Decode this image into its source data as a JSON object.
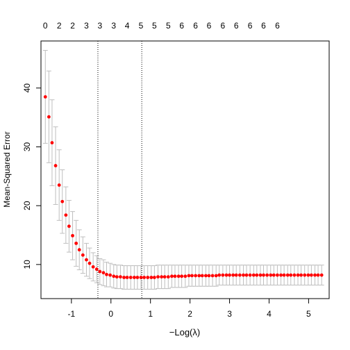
{
  "chart_data": {
    "type": "scatter",
    "title": "",
    "xlabel": "−Log(λ)",
    "ylabel": "Mean-Squared Error",
    "xlim": [
      -1.77,
      5.52
    ],
    "ylim": [
      4.2,
      48.0
    ],
    "x_ticks": [
      -1,
      0,
      1,
      2,
      3,
      4,
      5
    ],
    "y_ticks": [
      10,
      20,
      30,
      40
    ],
    "top_axis_labels": [
      "0",
      "2",
      "2",
      "3",
      "3",
      "3",
      "4",
      "5",
      "5",
      "5",
      "6",
      "6",
      "6",
      "6",
      "6",
      "6",
      "6",
      "6"
    ],
    "top_axis_positions": [
      -1.66,
      -1.31,
      -0.97,
      -0.62,
      -0.28,
      0.07,
      0.41,
      0.76,
      1.1,
      1.45,
      1.79,
      2.14,
      2.48,
      2.83,
      3.17,
      3.52,
      3.86,
      4.21
    ],
    "vlines": [
      -0.33,
      0.78
    ],
    "point_color": "#ff0000",
    "errorbar_color": "#bebebe",
    "x": [
      -1.66,
      -1.57,
      -1.49,
      -1.4,
      -1.31,
      -1.23,
      -1.14,
      -1.06,
      -0.97,
      -0.88,
      -0.8,
      -0.71,
      -0.62,
      -0.54,
      -0.45,
      -0.36,
      -0.28,
      -0.19,
      -0.11,
      -0.02,
      0.07,
      0.15,
      0.24,
      0.33,
      0.41,
      0.5,
      0.59,
      0.67,
      0.76,
      0.84,
      0.93,
      1.02,
      1.1,
      1.19,
      1.28,
      1.36,
      1.45,
      1.54,
      1.62,
      1.71,
      1.79,
      1.88,
      1.97,
      2.05,
      2.14,
      2.23,
      2.31,
      2.4,
      2.48,
      2.57,
      2.66,
      2.74,
      2.83,
      2.92,
      3.0,
      3.09,
      3.17,
      3.26,
      3.35,
      3.43,
      3.52,
      3.61,
      3.69,
      3.78,
      3.86,
      3.95,
      4.04,
      4.12,
      4.21,
      4.3,
      4.38,
      4.47,
      4.55,
      4.64,
      4.73,
      4.81,
      4.9,
      4.99,
      5.07,
      5.16,
      5.24,
      5.33
    ],
    "y": [
      38.5,
      35.1,
      30.7,
      26.8,
      23.5,
      20.7,
      18.4,
      16.5,
      14.9,
      13.6,
      12.5,
      11.6,
      10.8,
      10.2,
      9.6,
      9.2,
      8.8,
      8.6,
      8.3,
      8.2,
      8.0,
      7.9,
      7.9,
      7.8,
      7.8,
      7.8,
      7.8,
      7.8,
      7.8,
      7.8,
      7.8,
      7.8,
      7.8,
      7.9,
      7.9,
      7.9,
      7.9,
      8.0,
      8.0,
      8.0,
      8.0,
      8.0,
      8.1,
      8.1,
      8.1,
      8.1,
      8.1,
      8.1,
      8.1,
      8.1,
      8.1,
      8.2,
      8.2,
      8.2,
      8.2,
      8.2,
      8.2,
      8.2,
      8.2,
      8.2,
      8.2,
      8.2,
      8.2,
      8.2,
      8.2,
      8.2,
      8.2,
      8.2,
      8.2,
      8.2,
      8.2,
      8.2,
      8.2,
      8.2,
      8.2,
      8.2,
      8.2,
      8.2,
      8.2,
      8.2,
      8.2,
      8.2
    ],
    "y_upper": [
      46.4,
      42.9,
      38.0,
      33.4,
      29.5,
      26.1,
      23.2,
      20.9,
      19.0,
      17.5,
      15.9,
      14.7,
      13.6,
      12.8,
      12.0,
      11.5,
      11.0,
      10.8,
      10.4,
      10.2,
      10.0,
      9.9,
      9.9,
      9.8,
      9.8,
      9.8,
      9.8,
      9.8,
      9.8,
      9.8,
      9.8,
      9.8,
      9.8,
      9.9,
      9.9,
      9.9,
      9.9,
      9.9,
      9.9,
      9.9,
      9.9,
      9.9,
      9.9,
      9.9,
      9.9,
      9.9,
      9.9,
      9.9,
      9.9,
      9.9,
      9.9,
      9.9,
      9.9,
      9.9,
      9.9,
      9.9,
      9.9,
      9.9,
      9.9,
      9.9,
      9.9,
      9.9,
      9.9,
      9.9,
      9.9,
      9.9,
      9.9,
      9.9,
      9.9,
      9.9,
      9.9,
      9.9,
      9.9,
      9.9,
      9.9,
      9.9,
      9.9,
      9.9,
      9.9,
      9.9,
      9.9,
      9.9
    ],
    "y_lower": [
      30.6,
      27.3,
      23.4,
      20.2,
      17.5,
      15.3,
      13.6,
      12.1,
      10.8,
      9.7,
      9.1,
      8.5,
      8.0,
      7.6,
      7.2,
      6.9,
      6.6,
      6.4,
      6.2,
      6.2,
      6.0,
      5.9,
      5.9,
      5.8,
      5.8,
      5.8,
      5.8,
      5.8,
      5.8,
      5.8,
      5.8,
      5.8,
      5.8,
      5.9,
      5.9,
      5.9,
      5.9,
      6.1,
      6.1,
      6.1,
      6.1,
      6.1,
      6.3,
      6.3,
      6.3,
      6.3,
      6.3,
      6.3,
      6.3,
      6.3,
      6.3,
      6.5,
      6.5,
      6.5,
      6.5,
      6.5,
      6.5,
      6.5,
      6.5,
      6.5,
      6.5,
      6.5,
      6.5,
      6.5,
      6.5,
      6.5,
      6.5,
      6.5,
      6.5,
      6.5,
      6.5,
      6.5,
      6.5,
      6.5,
      6.5,
      6.5,
      6.5,
      6.5,
      6.5,
      6.5,
      6.5,
      6.5
    ]
  }
}
